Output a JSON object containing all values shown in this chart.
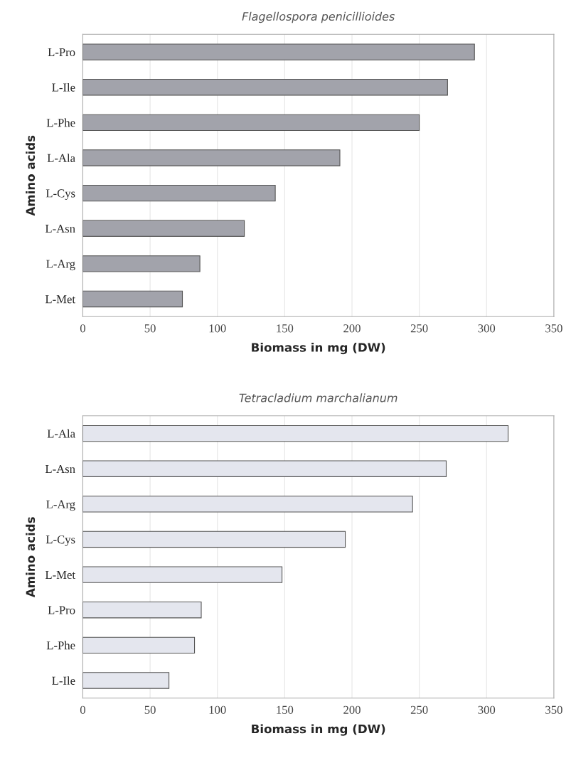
{
  "chart_data": [
    {
      "type": "bar",
      "orientation": "horizontal",
      "title": "Flagellospora penicillioides",
      "xlabel": "Biomass in mg (DW)",
      "ylabel": "Amino acids",
      "categories": [
        "L-Pro",
        "L-Ile",
        "L-Phe",
        "L-Ala",
        "L-Cys",
        "L-Asn",
        "L-Arg",
        "L-Met"
      ],
      "values": [
        291,
        271,
        250,
        191,
        143,
        120,
        87,
        74
      ],
      "color": "#a2a3ab",
      "xlim": [
        0,
        350
      ],
      "xticks": [
        0,
        50,
        100,
        150,
        200,
        250,
        300,
        350
      ],
      "grid": "x"
    },
    {
      "type": "bar",
      "orientation": "horizontal",
      "title": "Tetracladium marchalianum",
      "xlabel": "Biomass in mg (DW)",
      "ylabel": "Amino acids",
      "categories": [
        "L-Ala",
        "L-Asn",
        "L-Arg",
        "L-Cys",
        "L-Met",
        "L-Pro",
        "L-Phe",
        "L-Ile"
      ],
      "values": [
        316,
        270,
        245,
        195,
        148,
        88,
        83,
        64
      ],
      "color": "#e4e6ee",
      "xlim": [
        0,
        350
      ],
      "xticks": [
        0,
        50,
        100,
        150,
        200,
        250,
        300,
        350
      ],
      "grid": "x"
    }
  ]
}
